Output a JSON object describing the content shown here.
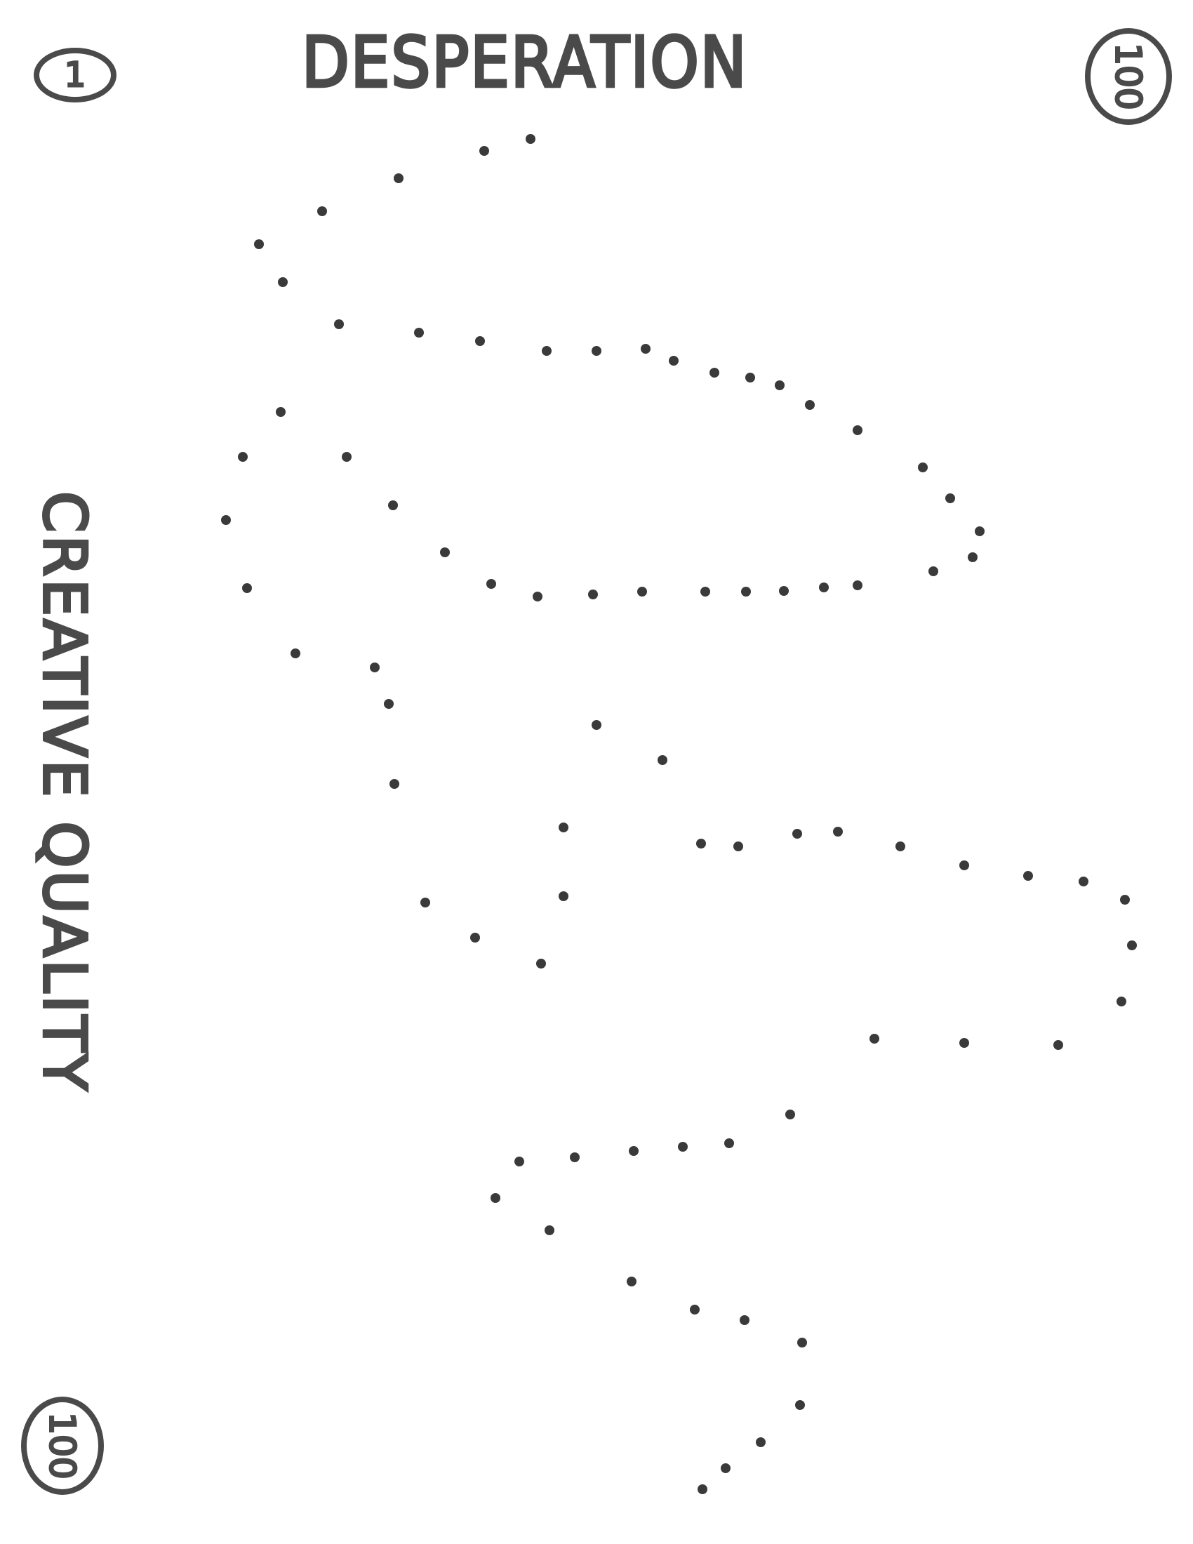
{
  "title": "DESPERATION",
  "side_label": "CREATIVE QUALITY",
  "corner_top_left": "1",
  "corner_top_right": "100",
  "corner_bottom_left": "100",
  "colors": {
    "ink": "#4a4a4a",
    "dot": "#3a3a3a",
    "background": "#ffffff"
  }
}
